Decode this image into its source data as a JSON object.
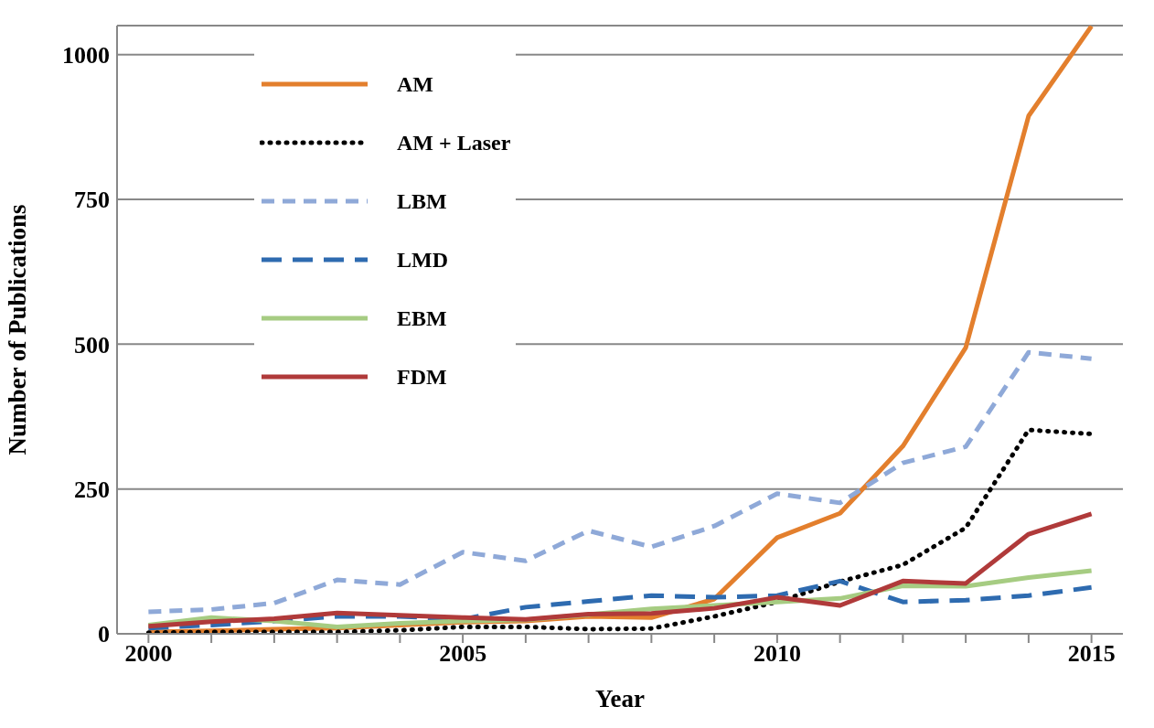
{
  "chart_data": {
    "type": "line",
    "xlabel": "Year",
    "ylabel": "Number of Publications",
    "categories": [
      "2000",
      null,
      null,
      null,
      null,
      "2005",
      null,
      null,
      null,
      null,
      "2010",
      null,
      null,
      null,
      null,
      "2015"
    ],
    "ylim": [
      0,
      1050
    ],
    "yticks": [
      0,
      250,
      500,
      750,
      1000
    ],
    "grid": "y",
    "legend": "top left",
    "marker": "none",
    "series": [
      {
        "name": "AM",
        "color": "#e37f2d",
        "line_style": "solid",
        "values": [
          3,
          5,
          8,
          10,
          15,
          20,
          22,
          30,
          28,
          60,
          166,
          208,
          324,
          494,
          894,
          1049
        ]
      },
      {
        "name": "AM + Laser",
        "color": "#000000",
        "line_style": "dotted",
        "values": [
          2,
          3,
          3,
          3,
          6,
          12,
          12,
          8,
          9,
          30,
          55,
          90,
          119,
          183,
          352,
          345
        ]
      },
      {
        "name": "LBM",
        "color": "#8fa9d8",
        "line_style": "dashed",
        "values": [
          38,
          42,
          53,
          93,
          85,
          141,
          126,
          178,
          150,
          186,
          242,
          226,
          295,
          323,
          486,
          475
        ]
      },
      {
        "name": "LMD",
        "color": "#2e6bb0",
        "line_style": "dashed",
        "values": [
          10,
          15,
          22,
          30,
          30,
          25,
          46,
          56,
          66,
          63,
          66,
          91,
          55,
          58,
          66,
          80
        ]
      },
      {
        "name": "EBM",
        "color": "#a6cc82",
        "line_style": "solid",
        "values": [
          15,
          28,
          22,
          12,
          18,
          22,
          24,
          33,
          43,
          49,
          55,
          61,
          83,
          82,
          97,
          109
        ]
      },
      {
        "name": "FDM",
        "color": "#b03a3a",
        "line_style": "solid",
        "values": [
          13,
          21,
          26,
          36,
          32,
          28,
          25,
          34,
          35,
          44,
          63,
          49,
          91,
          87,
          172,
          207
        ]
      }
    ]
  }
}
